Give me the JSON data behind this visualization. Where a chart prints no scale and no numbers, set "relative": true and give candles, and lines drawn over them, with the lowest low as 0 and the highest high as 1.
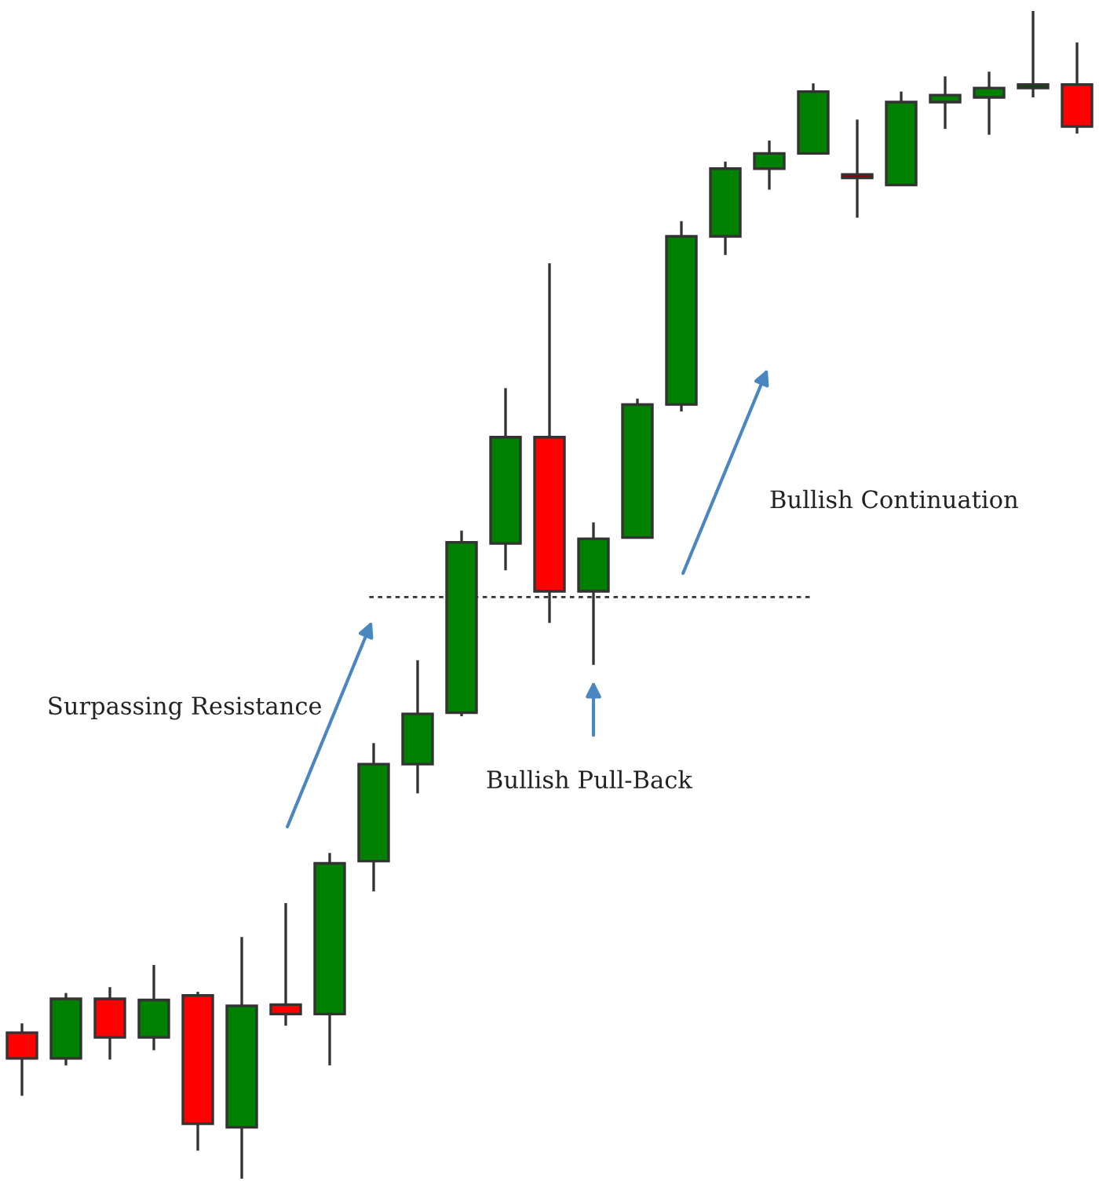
{
  "chart_data": {
    "type": "candlestick",
    "relative": true,
    "categories": [
      null,
      null,
      null,
      null,
      null,
      null,
      null,
      null,
      null,
      null,
      null,
      null,
      null,
      null,
      null,
      null,
      null,
      null,
      null,
      null,
      null,
      null,
      null,
      null,
      null
    ],
    "ohlc": [
      [
        0.125,
        0.133,
        0.071,
        0.103
      ],
      [
        0.103,
        0.159,
        0.097,
        0.154
      ],
      [
        0.154,
        0.164,
        0.102,
        0.121
      ],
      [
        0.121,
        0.183,
        0.11,
        0.153
      ],
      [
        0.157,
        0.16,
        0.024,
        0.047
      ],
      [
        0.044,
        0.207,
        0.0,
        0.148
      ],
      [
        0.149,
        0.236,
        0.131,
        0.141
      ],
      [
        0.141,
        0.279,
        0.097,
        0.27
      ],
      [
        0.272,
        0.373,
        0.246,
        0.355
      ],
      [
        0.355,
        0.444,
        0.33,
        0.398
      ],
      [
        0.399,
        0.555,
        0.396,
        0.545
      ],
      [
        0.544,
        0.677,
        0.521,
        0.635
      ],
      [
        0.635,
        0.784,
        0.476,
        0.503
      ],
      [
        0.503,
        0.562,
        0.44,
        0.548
      ],
      [
        0.549,
        0.668,
        0.549,
        0.663
      ],
      [
        0.663,
        0.82,
        0.657,
        0.807
      ],
      [
        0.807,
        0.871,
        0.791,
        0.865
      ],
      [
        0.865,
        0.889,
        0.847,
        0.878
      ],
      [
        0.878,
        0.938,
        0.877,
        0.931
      ],
      [
        0.858,
        0.907,
        0.823,
        0.857
      ],
      [
        0.851,
        0.931,
        0.851,
        0.922
      ],
      [
        0.922,
        0.944,
        0.899,
        0.928
      ],
      [
        0.926,
        0.948,
        0.894,
        0.934
      ],
      [
        0.934,
        1.0,
        0.926,
        0.937
      ],
      [
        0.937,
        0.973,
        0.895,
        0.901
      ]
    ],
    "colors": [
      "#ff0000",
      "#008000",
      "#ff0000",
      "#008000",
      "#ff0000",
      "#008000",
      "#ff0000",
      "#008000",
      "#008000",
      "#008000",
      "#008000",
      "#008000",
      "#ff0000",
      "#008000",
      "#008000",
      "#008000",
      "#008000",
      "#008000",
      "#008000",
      "#8b0000",
      "#008000",
      "#008000",
      "#008000",
      "#004d00",
      "#ff0000"
    ],
    "ref_lines": [
      {
        "axis": "y",
        "value": 0.498,
        "color": "#333333",
        "line_style": "dotted"
      }
    ],
    "annotations": [
      "Surpassing Resistance",
      "Bullish Pull-Back",
      "Bullish Continuation"
    ]
  }
}
